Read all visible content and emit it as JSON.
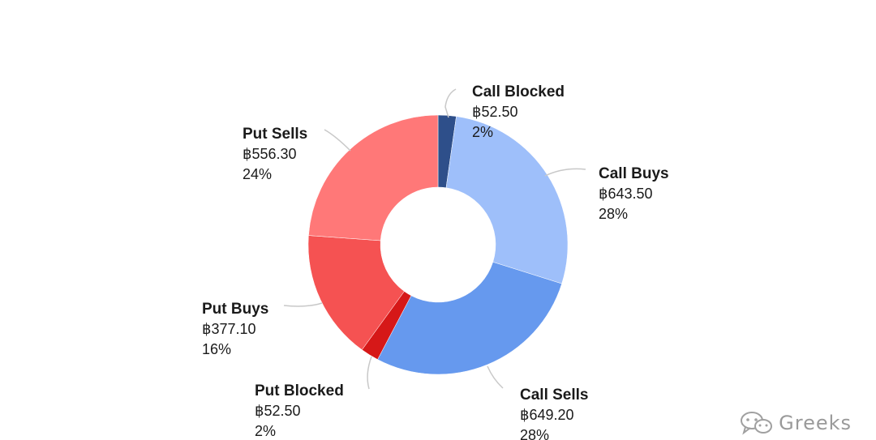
{
  "chart_data": {
    "type": "pie",
    "categories": [
      "Call Blocked",
      "Call Buys",
      "Call Sells",
      "Put Blocked",
      "Put Buys",
      "Put Sells"
    ],
    "values": [
      52.5,
      643.5,
      649.2,
      52.5,
      377.1,
      556.3
    ],
    "value_labels": [
      "฿52.50",
      "฿643.50",
      "฿649.20",
      "฿52.50",
      "฿377.10",
      "฿556.30"
    ],
    "percent_labels": [
      "2%",
      "28%",
      "28%",
      "2%",
      "16%",
      "24%"
    ],
    "colors": [
      "#2e4f8a",
      "#9ebffa",
      "#6699ee",
      "#d61818",
      "#f55252",
      "#ff7878"
    ],
    "donut": true,
    "legend": "none"
  },
  "watermark": {
    "text": "Greeks",
    "icon": "chat-bubbles-icon"
  }
}
